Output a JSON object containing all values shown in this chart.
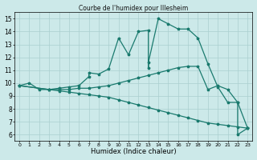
{
  "title": "Courbe de l'humidex pour Illesheim",
  "xlabel": "Humidex (Indice chaleur)",
  "xlim": [
    -0.5,
    23.5
  ],
  "ylim": [
    5.5,
    15.5
  ],
  "xticks": [
    0,
    1,
    2,
    3,
    4,
    5,
    6,
    7,
    8,
    9,
    10,
    11,
    12,
    13,
    14,
    15,
    16,
    17,
    18,
    19,
    20,
    21,
    22,
    23
  ],
  "yticks": [
    6,
    7,
    8,
    9,
    10,
    11,
    12,
    13,
    14,
    15
  ],
  "bg_color": "#cce9e9",
  "line_color": "#1a7a6e",
  "grid_color": "#aacfcf",
  "line1_x": [
    0,
    1,
    2,
    3,
    4,
    5,
    6,
    7,
    7,
    8,
    9,
    10,
    11,
    12,
    13,
    13,
    13,
    14,
    15,
    16,
    17,
    18,
    19,
    20,
    21,
    22,
    22,
    23
  ],
  "line1_y": [
    9.8,
    10.0,
    9.5,
    9.5,
    9.6,
    9.7,
    9.8,
    10.5,
    10.8,
    10.7,
    11.1,
    13.5,
    12.2,
    14.0,
    14.1,
    11.2,
    11.6,
    15.0,
    14.6,
    14.2,
    14.2,
    13.5,
    11.5,
    9.7,
    8.5,
    8.5,
    6.0,
    6.5
  ],
  "line2_x": [
    0,
    3,
    4,
    5,
    6,
    7,
    8,
    9,
    10,
    11,
    12,
    13,
    14,
    15,
    16,
    17,
    18,
    19,
    20,
    21,
    22,
    23
  ],
  "line2_y": [
    9.8,
    9.5,
    9.5,
    9.5,
    9.6,
    9.6,
    9.7,
    9.8,
    10.0,
    10.2,
    10.4,
    10.6,
    10.8,
    11.0,
    11.2,
    11.3,
    11.3,
    9.5,
    9.8,
    9.5,
    8.5,
    6.5
  ],
  "line3_x": [
    0,
    3,
    4,
    5,
    6,
    7,
    8,
    9,
    10,
    11,
    12,
    13,
    14,
    15,
    16,
    17,
    18,
    19,
    20,
    21,
    22,
    23
  ],
  "line3_y": [
    9.8,
    9.5,
    9.4,
    9.3,
    9.2,
    9.1,
    9.0,
    8.9,
    8.7,
    8.5,
    8.3,
    8.1,
    7.9,
    7.7,
    7.5,
    7.3,
    7.1,
    6.9,
    6.8,
    6.7,
    6.6,
    6.5
  ]
}
